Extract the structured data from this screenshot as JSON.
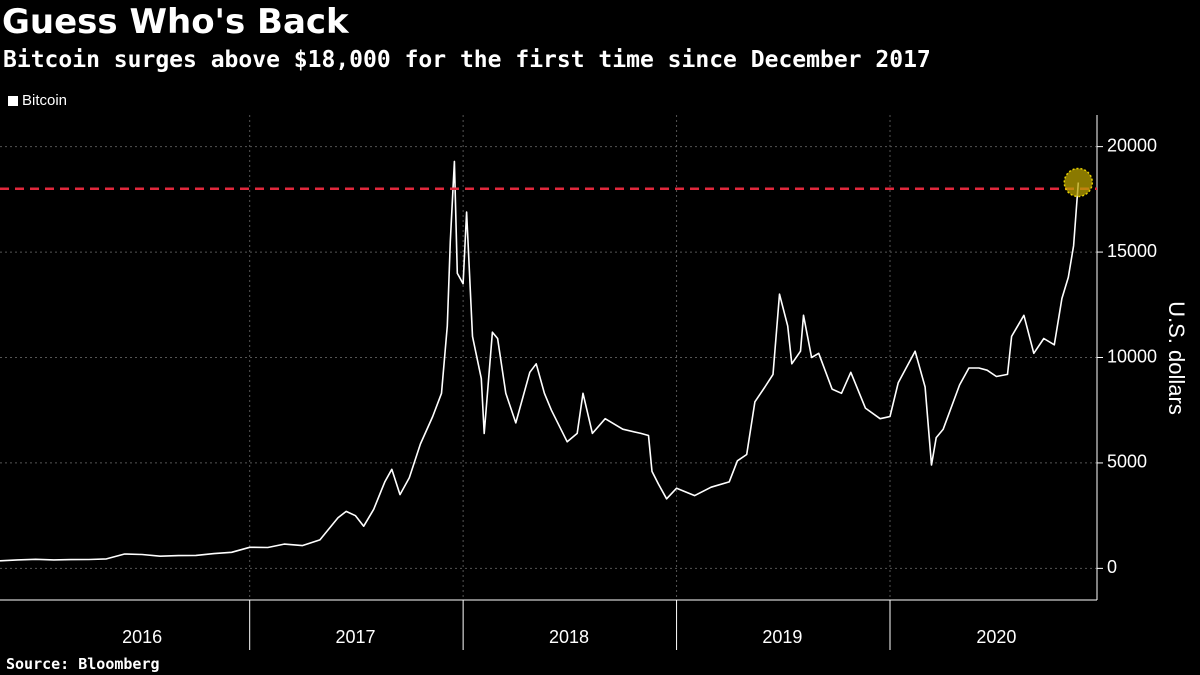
{
  "header": {
    "title": "Guess Who's Back",
    "subtitle": "Bitcoin surges above $18,000 for the first time since December 2017"
  },
  "footer": {
    "source": "Source: Bloomberg"
  },
  "colors": {
    "line": "#ffffff",
    "reference": "#e0283c",
    "highlight": "#b8a100",
    "grid": "#555555",
    "background": "#000000"
  },
  "chart_data": {
    "type": "line",
    "title": "Guess Who's Back",
    "subtitle": "Bitcoin surges above $18,000 for the first time since December 2017",
    "ylabel": "U.S. dollars",
    "xlabel": "",
    "legend": {
      "position": "top-left",
      "entries": [
        "Bitcoin"
      ]
    },
    "ylim": [
      -1500,
      21500
    ],
    "xlim": [
      "2015-11-01",
      "2020-12-20"
    ],
    "grid": true,
    "y_ticks": [
      0,
      5000,
      10000,
      15000,
      20000
    ],
    "y_tick_labels": [
      "0",
      "5000",
      "10000",
      "15000",
      "20000"
    ],
    "x_tick_labels": [
      "2016",
      "2017",
      "2018",
      "2019",
      "2020"
    ],
    "x_tick_centers": [
      "2016-07-01",
      "2017-07-01",
      "2018-07-01",
      "2019-07-01",
      "2020-07-01"
    ],
    "x_boundaries": [
      "2017-01-01",
      "2018-01-01",
      "2019-01-01",
      "2020-01-01"
    ],
    "reference_line": {
      "value": 18000,
      "style": "dashed",
      "color": "#e0283c"
    },
    "highlight_point": {
      "date": "2020-11-18",
      "value": 18300
    },
    "series": [
      {
        "name": "Bitcoin",
        "points": [
          [
            "2015-11-01",
            360
          ],
          [
            "2015-12-01",
            400
          ],
          [
            "2016-01-01",
            430
          ],
          [
            "2016-02-01",
            400
          ],
          [
            "2016-03-01",
            415
          ],
          [
            "2016-04-01",
            420
          ],
          [
            "2016-05-01",
            450
          ],
          [
            "2016-06-01",
            680
          ],
          [
            "2016-07-01",
            660
          ],
          [
            "2016-08-01",
            575
          ],
          [
            "2016-09-01",
            605
          ],
          [
            "2016-10-01",
            615
          ],
          [
            "2016-11-01",
            700
          ],
          [
            "2016-12-01",
            760
          ],
          [
            "2017-01-01",
            1000
          ],
          [
            "2017-02-01",
            990
          ],
          [
            "2017-03-01",
            1150
          ],
          [
            "2017-04-01",
            1080
          ],
          [
            "2017-05-01",
            1350
          ],
          [
            "2017-06-01",
            2400
          ],
          [
            "2017-06-15",
            2700
          ],
          [
            "2017-07-01",
            2500
          ],
          [
            "2017-07-15",
            2000
          ],
          [
            "2017-08-01",
            2800
          ],
          [
            "2017-08-20",
            4100
          ],
          [
            "2017-09-01",
            4700
          ],
          [
            "2017-09-15",
            3500
          ],
          [
            "2017-10-01",
            4300
          ],
          [
            "2017-10-20",
            5900
          ],
          [
            "2017-11-10",
            7200
          ],
          [
            "2017-11-25",
            8300
          ],
          [
            "2017-12-05",
            11500
          ],
          [
            "2017-12-10",
            15500
          ],
          [
            "2017-12-17",
            19300
          ],
          [
            "2017-12-22",
            14000
          ],
          [
            "2018-01-01",
            13500
          ],
          [
            "2018-01-07",
            16900
          ],
          [
            "2018-01-17",
            11000
          ],
          [
            "2018-02-01",
            9000
          ],
          [
            "2018-02-06",
            6400
          ],
          [
            "2018-02-20",
            11200
          ],
          [
            "2018-03-01",
            10900
          ],
          [
            "2018-03-15",
            8300
          ],
          [
            "2018-04-01",
            6900
          ],
          [
            "2018-04-25",
            9300
          ],
          [
            "2018-05-06",
            9700
          ],
          [
            "2018-05-20",
            8300
          ],
          [
            "2018-06-01",
            7500
          ],
          [
            "2018-06-28",
            6000
          ],
          [
            "2018-07-15",
            6400
          ],
          [
            "2018-07-25",
            8300
          ],
          [
            "2018-08-10",
            6400
          ],
          [
            "2018-09-01",
            7100
          ],
          [
            "2018-10-01",
            6600
          ],
          [
            "2018-11-01",
            6400
          ],
          [
            "2018-11-14",
            6300
          ],
          [
            "2018-11-20",
            4600
          ],
          [
            "2018-12-01",
            4000
          ],
          [
            "2018-12-15",
            3300
          ],
          [
            "2019-01-01",
            3800
          ],
          [
            "2019-02-01",
            3450
          ],
          [
            "2019-03-01",
            3850
          ],
          [
            "2019-04-01",
            4100
          ],
          [
            "2019-04-15",
            5100
          ],
          [
            "2019-05-01",
            5400
          ],
          [
            "2019-05-15",
            7900
          ],
          [
            "2019-06-01",
            8600
          ],
          [
            "2019-06-15",
            9200
          ],
          [
            "2019-06-26",
            13000
          ],
          [
            "2019-07-10",
            11500
          ],
          [
            "2019-07-17",
            9700
          ],
          [
            "2019-08-01",
            10300
          ],
          [
            "2019-08-06",
            12000
          ],
          [
            "2019-08-20",
            10000
          ],
          [
            "2019-09-01",
            10200
          ],
          [
            "2019-09-24",
            8500
          ],
          [
            "2019-10-10",
            8300
          ],
          [
            "2019-10-26",
            9300
          ],
          [
            "2019-11-20",
            7600
          ],
          [
            "2019-12-15",
            7100
          ],
          [
            "2020-01-01",
            7200
          ],
          [
            "2020-01-15",
            8800
          ],
          [
            "2020-02-13",
            10300
          ],
          [
            "2020-03-01",
            8600
          ],
          [
            "2020-03-12",
            4900
          ],
          [
            "2020-03-20",
            6200
          ],
          [
            "2020-04-01",
            6600
          ],
          [
            "2020-04-29",
            8700
          ],
          [
            "2020-05-15",
            9500
          ],
          [
            "2020-06-01",
            9500
          ],
          [
            "2020-06-15",
            9400
          ],
          [
            "2020-07-01",
            9100
          ],
          [
            "2020-07-20",
            9200
          ],
          [
            "2020-07-27",
            11000
          ],
          [
            "2020-08-17",
            12000
          ],
          [
            "2020-09-03",
            10200
          ],
          [
            "2020-09-20",
            10900
          ],
          [
            "2020-10-08",
            10600
          ],
          [
            "2020-10-21",
            12800
          ],
          [
            "2020-11-01",
            13800
          ],
          [
            "2020-11-10",
            15300
          ],
          [
            "2020-11-18",
            18300
          ]
        ]
      }
    ]
  }
}
